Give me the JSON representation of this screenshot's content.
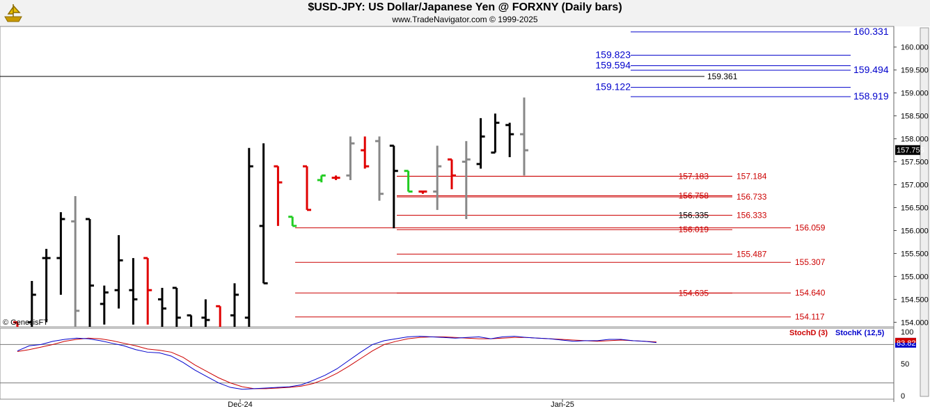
{
  "header": {
    "title": "$USD-JPY:  US Dollar/Japanese Yen @ FORXNY  (Daily bars)",
    "subtitle": "www.TradeNavigator.com © 1999-2025",
    "logo_icon": "trade-navigator-ship-logo"
  },
  "watermark": "© GenesisFT",
  "colors": {
    "up": "#000000",
    "down_gray": "#888888",
    "red": "#e00000",
    "green": "#22cc22",
    "blue_line": "#0000cc",
    "red_line": "#cc0000",
    "stochD": "#cc0000",
    "stochK": "#0000cc"
  },
  "chart_data": [
    {
      "type": "ohlc",
      "name": "price",
      "ylim": [
        153.9,
        160.45
      ],
      "y_ticks": [
        "160.000",
        "159.500",
        "159.000",
        "158.500",
        "158.000",
        "157.500",
        "157.000",
        "156.500",
        "156.000",
        "155.500",
        "155.000",
        "154.500",
        "154.000"
      ],
      "x_labels": [
        "Dec-24",
        "Jan-25"
      ],
      "current_price": "157.755",
      "bars": [
        {
          "o": 154.0,
          "h": 154.0,
          "l": 153.8,
          "c": 153.8,
          "color": "red"
        },
        {
          "o": 154.0,
          "h": 154.9,
          "l": 153.6,
          "c": 154.6,
          "color": "black"
        },
        {
          "o": 155.4,
          "h": 155.6,
          "l": 154.0,
          "c": 155.4,
          "color": "black"
        },
        {
          "o": 155.4,
          "h": 156.4,
          "l": 154.6,
          "c": 156.25,
          "color": "black"
        },
        {
          "o": 156.2,
          "h": 156.75,
          "l": 153.9,
          "c": 154.25,
          "color": "gray"
        },
        {
          "o": 156.25,
          "h": 156.25,
          "l": 153.5,
          "c": 154.8,
          "color": "black"
        },
        {
          "o": 154.4,
          "h": 154.8,
          "l": 153.95,
          "c": 154.65,
          "color": "black"
        },
        {
          "o": 154.7,
          "h": 155.9,
          "l": 154.3,
          "c": 155.35,
          "color": "black"
        },
        {
          "o": 154.7,
          "h": 155.4,
          "l": 153.95,
          "c": 154.5,
          "color": "black"
        },
        {
          "o": 155.4,
          "h": 155.4,
          "l": 153.95,
          "c": 154.7,
          "color": "red"
        },
        {
          "o": 154.5,
          "h": 154.75,
          "l": 153.8,
          "c": 154.3,
          "color": "black"
        },
        {
          "o": 154.75,
          "h": 154.75,
          "l": 153.8,
          "c": 154.1,
          "color": "black"
        },
        {
          "o": 154.15,
          "h": 154.15,
          "l": 153.6,
          "c": 153.8,
          "color": "black"
        },
        {
          "o": 154.1,
          "h": 154.5,
          "l": 153.8,
          "c": 154.05,
          "color": "black"
        },
        {
          "o": 154.35,
          "h": 154.35,
          "l": 153.8,
          "c": 153.8,
          "color": "red"
        },
        {
          "o": 154.15,
          "h": 154.85,
          "l": 153.9,
          "c": 154.6,
          "color": "black"
        },
        {
          "o": 154.1,
          "h": 157.8,
          "l": 153.9,
          "c": 157.4,
          "color": "black"
        },
        {
          "o": 156.1,
          "h": 157.9,
          "l": 154.85,
          "c": 154.85,
          "color": "black"
        },
        {
          "o": 157.4,
          "h": 157.4,
          "l": 156.1,
          "c": 157.05,
          "color": "red"
        },
        {
          "o": 156.3,
          "h": 156.3,
          "l": 156.1,
          "c": 156.1,
          "color": "green"
        },
        {
          "o": 157.4,
          "h": 157.4,
          "l": 156.45,
          "c": 156.45,
          "color": "red"
        },
        {
          "o": 157.1,
          "h": 157.2,
          "l": 157.05,
          "c": 157.2,
          "color": "green"
        },
        {
          "o": 157.15,
          "h": 157.2,
          "l": 157.1,
          "c": 157.15,
          "color": "red"
        },
        {
          "o": 157.2,
          "h": 158.05,
          "l": 157.1,
          "c": 157.9,
          "color": "gray"
        },
        {
          "o": 157.75,
          "h": 158.05,
          "l": 157.35,
          "c": 157.4,
          "color": "red"
        },
        {
          "o": 157.95,
          "h": 158.05,
          "l": 156.65,
          "c": 156.8,
          "color": "gray"
        },
        {
          "o": 157.85,
          "h": 157.85,
          "l": 156.05,
          "c": 157.3,
          "color": "black"
        },
        {
          "o": 157.3,
          "h": 157.3,
          "l": 156.85,
          "c": 156.85,
          "color": "green"
        },
        {
          "o": 156.85,
          "h": 156.85,
          "l": 156.8,
          "c": 156.85,
          "color": "red"
        },
        {
          "o": 156.85,
          "h": 157.85,
          "l": 156.45,
          "c": 157.4,
          "color": "gray"
        },
        {
          "o": 157.55,
          "h": 157.55,
          "l": 156.9,
          "c": 157.2,
          "color": "red"
        },
        {
          "o": 157.5,
          "h": 157.95,
          "l": 156.25,
          "c": 157.55,
          "color": "gray"
        },
        {
          "o": 157.45,
          "h": 158.45,
          "l": 157.35,
          "c": 158.05,
          "color": "black"
        },
        {
          "o": 157.7,
          "h": 158.55,
          "l": 157.7,
          "c": 158.35,
          "color": "black"
        },
        {
          "o": 158.3,
          "h": 158.35,
          "l": 157.6,
          "c": 158.1,
          "color": "black"
        },
        {
          "o": 158.1,
          "h": 158.9,
          "l": 157.2,
          "c": 157.75,
          "color": "gray"
        }
      ],
      "levels": [
        {
          "value": 160.331,
          "label": "160.331",
          "color": "blue",
          "label_side": "right"
        },
        {
          "value": 159.823,
          "label": "159.823",
          "color": "blue",
          "label_side": "left"
        },
        {
          "value": 159.594,
          "label": "159.594",
          "color": "blue",
          "label_side": "left"
        },
        {
          "value": 159.494,
          "label": "159.494",
          "color": "blue",
          "label_side": "right"
        },
        {
          "value": 159.361,
          "label": "159.361",
          "color": "black",
          "label_side": "left"
        },
        {
          "value": 159.122,
          "label": "159.122",
          "color": "blue",
          "label_side": "left"
        },
        {
          "value": 158.919,
          "label": "158.919",
          "color": "blue",
          "label_side": "right"
        },
        {
          "value": 157.184,
          "label": "157.184",
          "color": "red",
          "label_side": "right"
        },
        {
          "value": 157.183,
          "label": "157.183",
          "color": "red",
          "label_side": "left"
        },
        {
          "value": 156.758,
          "label": "156.758",
          "color": "red",
          "label_side": "left"
        },
        {
          "value": 156.733,
          "label": "156.733",
          "color": "red",
          "label_side": "right"
        },
        {
          "value": 156.335,
          "label": "156.335",
          "color": "black",
          "label_side": "left"
        },
        {
          "value": 156.333,
          "label": "156.333",
          "color": "red",
          "label_side": "right"
        },
        {
          "value": 156.059,
          "label": "156.059",
          "color": "red",
          "label_side": "right"
        },
        {
          "value": 156.019,
          "label": "156.019",
          "color": "red",
          "label_side": "left"
        },
        {
          "value": 155.487,
          "label": "155.487",
          "color": "red",
          "label_side": "right"
        },
        {
          "value": 155.307,
          "label": "155.307",
          "color": "red",
          "label_side": "right"
        },
        {
          "value": 154.635,
          "label": "154.635",
          "color": "red",
          "label_side": "left"
        },
        {
          "value": 154.64,
          "label": "154.640",
          "color": "red",
          "label_side": "right"
        },
        {
          "value": 154.117,
          "label": "154.117",
          "color": "red",
          "label_side": "right"
        }
      ]
    },
    {
      "type": "line",
      "name": "stochastic",
      "ylim": [
        0,
        100
      ],
      "y_ticks": [
        "100",
        "50",
        "0"
      ],
      "gridlines": [
        80,
        20
      ],
      "legend": [
        "StochD (3)",
        "StochK (12,5)"
      ],
      "current_value": "83.82",
      "series": [
        {
          "name": "StochD (3)",
          "values": [
            69,
            72,
            76,
            80,
            85,
            88,
            90,
            89,
            86,
            82,
            78,
            73,
            71,
            68,
            60,
            48,
            38,
            28,
            20,
            14,
            11,
            11,
            12,
            13,
            15,
            19,
            26,
            35,
            46,
            58,
            70,
            80,
            85,
            89,
            91,
            92,
            92,
            91,
            90,
            89,
            89,
            90,
            91,
            91,
            90,
            89,
            88,
            87,
            86,
            85,
            86,
            87,
            86,
            85,
            84
          ]
        },
        {
          "name": "StochK (12,5)",
          "values": [
            70,
            78,
            80,
            85,
            88,
            90,
            89,
            86,
            82,
            78,
            72,
            68,
            67,
            62,
            52,
            40,
            30,
            20,
            13,
            10,
            11,
            12,
            13,
            14,
            17,
            24,
            32,
            42,
            55,
            68,
            80,
            86,
            89,
            92,
            93,
            92,
            91,
            90,
            91,
            92,
            89,
            92,
            93,
            91,
            90,
            89,
            87,
            85,
            86,
            86,
            88,
            88,
            86,
            85,
            83
          ]
        }
      ]
    }
  ]
}
